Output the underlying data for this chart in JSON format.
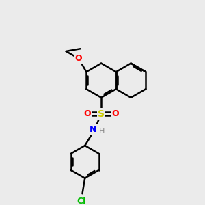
{
  "background_color": "#ebebeb",
  "bond_color": "#000000",
  "bond_lw": 1.8,
  "atom_colors": {
    "O": "#ff0000",
    "S": "#cccc00",
    "N": "#0000ff",
    "Cl": "#00bb00",
    "H": "#888888",
    "C": "#000000"
  },
  "scale": 26,
  "figsize": [
    3.0,
    3.0
  ],
  "dpi": 100
}
